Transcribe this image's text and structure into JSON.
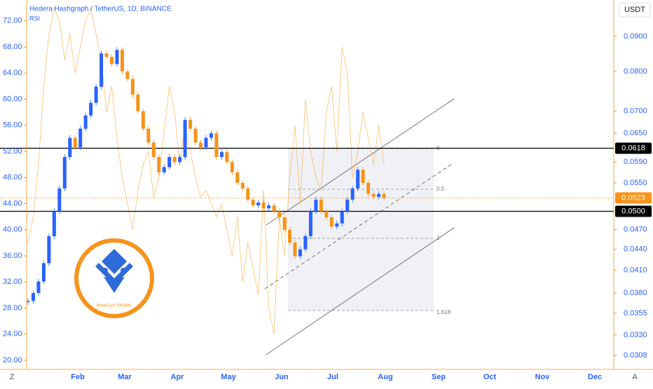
{
  "header": {
    "title": "Hedera Hashgraph / TetherUS, 1D, BINANCE",
    "indicator": "RSI",
    "currency": "USDT",
    "left_button": "Z",
    "right_button": "A"
  },
  "logo": {
    "text": "MonoCoin SIGNAL"
  },
  "fib_labels": [
    "0",
    "0.5",
    "1",
    "1.618"
  ],
  "chart_data": {
    "type": "candlestick",
    "log_scale": true,
    "up_color": "#2962ff",
    "down_color": "#f7931a",
    "rsi_color": "#f9b04d",
    "closes": [
      0.037,
      0.038,
      0.0395,
      0.042,
      0.046,
      0.05,
      0.054,
      0.06,
      0.064,
      0.062,
      0.066,
      0.069,
      0.072,
      0.076,
      0.085,
      0.084,
      0.082,
      0.086,
      0.08,
      0.078,
      0.074,
      0.07,
      0.066,
      0.063,
      0.06,
      0.057,
      0.058,
      0.06,
      0.059,
      0.06,
      0.068,
      0.066,
      0.063,
      0.062,
      0.064,
      0.065,
      0.06,
      0.061,
      0.059,
      0.057,
      0.055,
      0.054,
      0.052,
      0.051,
      0.0515,
      0.0505,
      0.051,
      0.05,
      0.049,
      0.047,
      0.045,
      0.043,
      0.044,
      0.046,
      0.05,
      0.052,
      0.05,
      0.049,
      0.0475,
      0.048,
      0.05,
      0.052,
      0.054,
      0.0575,
      0.055,
      0.053,
      0.0525,
      0.053,
      0.0523
    ],
    "rsi": [
      38,
      42,
      50,
      62,
      70,
      74,
      72,
      66,
      70,
      64,
      68,
      72,
      74,
      70,
      66,
      58,
      62,
      54,
      48,
      44,
      40,
      46,
      50,
      52,
      45,
      48,
      55,
      62,
      58,
      50,
      56,
      52,
      48,
      45,
      46,
      44,
      42,
      44,
      40,
      36,
      42,
      32,
      38,
      34,
      30,
      46,
      28,
      24,
      42,
      36,
      48,
      56,
      44,
      60,
      52,
      48,
      46,
      58,
      62,
      52,
      68,
      64,
      48,
      52,
      58,
      54,
      50,
      56,
      50
    ],
    "ylim": [
      0.0294,
      0.1017
    ],
    "yticks": [
      {
        "value": 0.09,
        "label": "0.0900"
      },
      {
        "value": 0.08,
        "label": "0.0800"
      },
      {
        "value": 0.07,
        "label": "0.0700"
      },
      {
        "value": 0.065,
        "label": "0.0650"
      },
      {
        "value": 0.059,
        "label": "0.0590"
      },
      {
        "value": 0.055,
        "label": "0.0550"
      },
      {
        "value": 0.047,
        "label": "0.0470"
      },
      {
        "value": 0.044,
        "label": "0.0440"
      },
      {
        "value": 0.041,
        "label": "0.0410"
      },
      {
        "value": 0.038,
        "label": "0.0380"
      },
      {
        "value": 0.0355,
        "label": "0.0355"
      },
      {
        "value": 0.033,
        "label": "0.0330"
      },
      {
        "value": 0.0308,
        "label": "0.0308"
      }
    ],
    "y2lim": [
      18.6,
      75.2
    ],
    "y2ticks": [
      {
        "value": 72,
        "label": "72.00"
      },
      {
        "value": 68,
        "label": "68.00"
      },
      {
        "value": 64,
        "label": "64.00"
      },
      {
        "value": 60,
        "label": "60.00"
      },
      {
        "value": 56,
        "label": "56.00"
      },
      {
        "value": 52,
        "label": "52.00"
      },
      {
        "value": 48,
        "label": "48.00"
      },
      {
        "value": 44,
        "label": "44.00"
      },
      {
        "value": 40,
        "label": "40.00"
      },
      {
        "value": 36,
        "label": "36.00"
      },
      {
        "value": 32,
        "label": "32.00"
      },
      {
        "value": 28,
        "label": "28.00"
      },
      {
        "value": 24,
        "label": "24.00"
      },
      {
        "value": 20,
        "label": "20.00"
      }
    ],
    "price_lines": [
      {
        "value": 0.0618,
        "label": "0.0618",
        "color": "#000000"
      },
      {
        "value": 0.0523,
        "label": "0.0523",
        "color": "#f7931a"
      },
      {
        "value": 0.05,
        "label": "0.0500",
        "color": "#000000"
      }
    ],
    "x_labels": [
      "Feb",
      "Mar",
      "Apr",
      "May",
      "Jun",
      "Jul",
      "Aug",
      "Sep",
      "Oct",
      "Nov",
      "Dec"
    ]
  }
}
